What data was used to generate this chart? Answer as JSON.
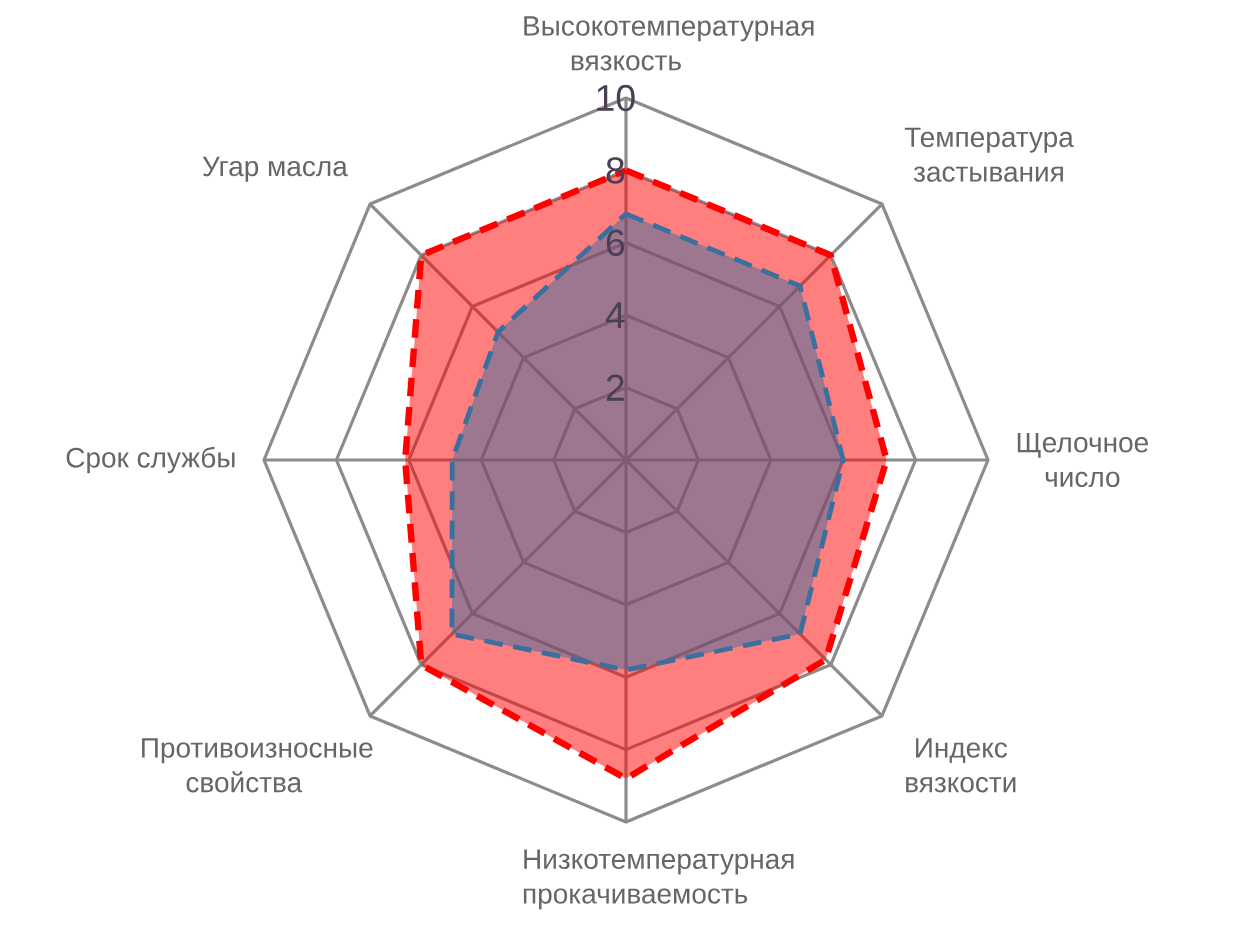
{
  "chart_data": {
    "type": "radar",
    "categories": [
      "Высокотемпературная вязкость",
      "Температура застывания",
      "Щелочное число",
      "Индекс вязкости",
      "Низкотемпературная прокачиваемость",
      "Противоизносные свойства",
      "Срок службы",
      "Угар масла"
    ],
    "series": [
      {
        "color": "#ff0000",
        "values": [
          8,
          8,
          7.2,
          7.8,
          8.8,
          8,
          6.1,
          8
        ]
      },
      {
        "color": "#3a6f9f",
        "values": [
          6.8,
          6.8,
          6,
          6.8,
          5.8,
          6.8,
          4.8,
          5
        ]
      }
    ],
    "ylim": [
      0,
      10
    ],
    "yticks": [
      2,
      4,
      6,
      8,
      10
    ],
    "grid": true,
    "line_style": "dashed"
  }
}
